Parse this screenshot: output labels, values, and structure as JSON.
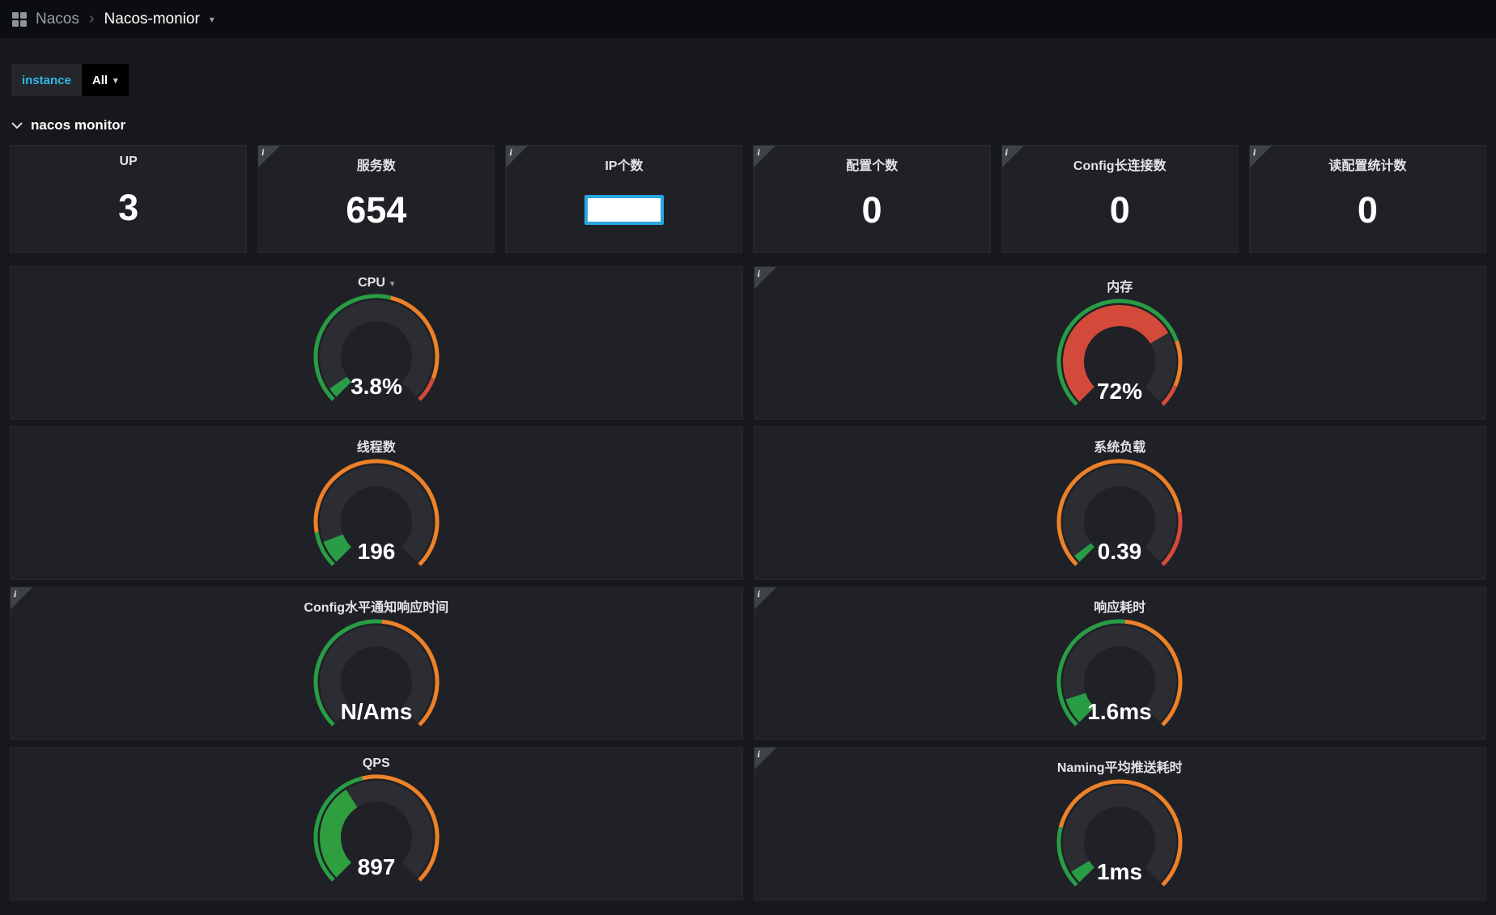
{
  "icons": {
    "caret_down": "▾",
    "breadcrumb_separator": "›",
    "info": "i"
  },
  "colors": {
    "accent_cyan": "#33b5e5",
    "gauge_green": "#299c46",
    "gauge_orange": "#ed8128",
    "gauge_red": "#d44a3a",
    "ip_input_border": "#2aa7e0"
  },
  "breadcrumb": {
    "app": "Nacos",
    "separator": "›",
    "dashboard": "Nacos-monior"
  },
  "filters": {
    "instance_label": "instance",
    "instance_value": "All"
  },
  "row": {
    "title": "nacos monitor"
  },
  "stats": [
    {
      "id": "up",
      "title": "UP",
      "value": "3",
      "info": false,
      "input": false
    },
    {
      "id": "service-count",
      "title": "服务数",
      "value": "654",
      "info": true,
      "input": false
    },
    {
      "id": "ip-count",
      "title": "IP个数",
      "value": "",
      "info": true,
      "input": true
    },
    {
      "id": "config-count",
      "title": "配置个数",
      "value": "0",
      "info": true,
      "input": false
    },
    {
      "id": "config-long-conn",
      "title": "Config长连接数",
      "value": "0",
      "info": true,
      "input": false
    },
    {
      "id": "config-read-stats",
      "title": "读配置统计数",
      "value": "0",
      "info": true,
      "input": false
    }
  ],
  "gauges": [
    {
      "id": "cpu",
      "title": "CPU",
      "value": "3.8%",
      "percent": 4,
      "fill_color": "#299c46",
      "info": false,
      "menu_caret": true,
      "segments": [
        {
          "from": 0,
          "to": 55,
          "color": "#299c46"
        },
        {
          "from": 55,
          "to": 91,
          "color": "#ed8128"
        },
        {
          "from": 91,
          "to": 100,
          "color": "#d44a3a"
        }
      ]
    },
    {
      "id": "memory",
      "title": "内存",
      "value": "72%",
      "percent": 72,
      "fill_color": "#d44a3a",
      "info": true,
      "menu_caret": false,
      "segments": [
        {
          "from": 0,
          "to": 76,
          "color": "#299c46"
        },
        {
          "from": 76,
          "to": 92,
          "color": "#ed8128"
        },
        {
          "from": 92,
          "to": 100,
          "color": "#d44a3a"
        }
      ]
    },
    {
      "id": "thread-count",
      "title": "线程数",
      "value": "196",
      "percent": 9,
      "fill_color": "#299c46",
      "info": false,
      "menu_caret": false,
      "segments": [
        {
          "from": 0,
          "to": 13,
          "color": "#299c46"
        },
        {
          "from": 13,
          "to": 100,
          "color": "#ed8128"
        }
      ]
    },
    {
      "id": "system-load",
      "title": "系统负载",
      "value": "0.39",
      "percent": 3,
      "fill_color": "#299c46",
      "info": false,
      "menu_caret": false,
      "segments": [
        {
          "from": 0,
          "to": 80,
          "color": "#ed8128"
        },
        {
          "from": 80,
          "to": 100,
          "color": "#d44a3a"
        }
      ]
    },
    {
      "id": "config-notify-latency",
      "title": "Config水平通知响应时间",
      "value": "N/Ams",
      "percent": 0,
      "fill_color": "#299c46",
      "info": true,
      "menu_caret": false,
      "segments": [
        {
          "from": 0,
          "to": 52,
          "color": "#299c46"
        },
        {
          "from": 52,
          "to": 100,
          "color": "#ed8128"
        }
      ]
    },
    {
      "id": "response-latency",
      "title": "响应耗时",
      "value": "1.6ms",
      "percent": 10,
      "fill_color": "#299c46",
      "info": true,
      "menu_caret": false,
      "segments": [
        {
          "from": 0,
          "to": 52,
          "color": "#299c46"
        },
        {
          "from": 52,
          "to": 100,
          "color": "#ed8128"
        }
      ]
    },
    {
      "id": "qps",
      "title": "QPS",
      "value": "897",
      "percent": 38,
      "fill_color": "#2f9e3f",
      "info": false,
      "menu_caret": false,
      "segments": [
        {
          "from": 0,
          "to": 45,
          "color": "#299c46"
        },
        {
          "from": 45,
          "to": 100,
          "color": "#ed8128"
        }
      ]
    },
    {
      "id": "naming-push-latency",
      "title": "Naming平均推送耗时",
      "value": "1ms",
      "percent": 5,
      "fill_color": "#299c46",
      "info": true,
      "menu_caret": false,
      "segments": [
        {
          "from": 0,
          "to": 22,
          "color": "#299c46"
        },
        {
          "from": 22,
          "to": 100,
          "color": "#ed8128"
        }
      ]
    }
  ],
  "chart_data": [
    {
      "type": "gauge",
      "title": "CPU",
      "value": 3.8,
      "unit": "%",
      "display": "3.8%"
    },
    {
      "type": "gauge",
      "title": "内存",
      "value": 72,
      "unit": "%",
      "display": "72%"
    },
    {
      "type": "gauge",
      "title": "线程数",
      "value": 196,
      "unit": "",
      "display": "196"
    },
    {
      "type": "gauge",
      "title": "系统负载",
      "value": 0.39,
      "unit": "",
      "display": "0.39"
    },
    {
      "type": "gauge",
      "title": "Config水平通知响应时间",
      "value": null,
      "unit": "ms",
      "display": "N/Ams"
    },
    {
      "type": "gauge",
      "title": "响应耗时",
      "value": 1.6,
      "unit": "ms",
      "display": "1.6ms"
    },
    {
      "type": "gauge",
      "title": "QPS",
      "value": 897,
      "unit": "",
      "display": "897"
    },
    {
      "type": "gauge",
      "title": "Naming平均推送耗时",
      "value": 1,
      "unit": "ms",
      "display": "1ms"
    },
    {
      "type": "stat",
      "title": "UP",
      "value": 3
    },
    {
      "type": "stat",
      "title": "服务数",
      "value": 654
    },
    {
      "type": "stat",
      "title": "配置个数",
      "value": 0
    },
    {
      "type": "stat",
      "title": "Config长连接数",
      "value": 0
    },
    {
      "type": "stat",
      "title": "读配置统计数",
      "value": 0
    }
  ]
}
